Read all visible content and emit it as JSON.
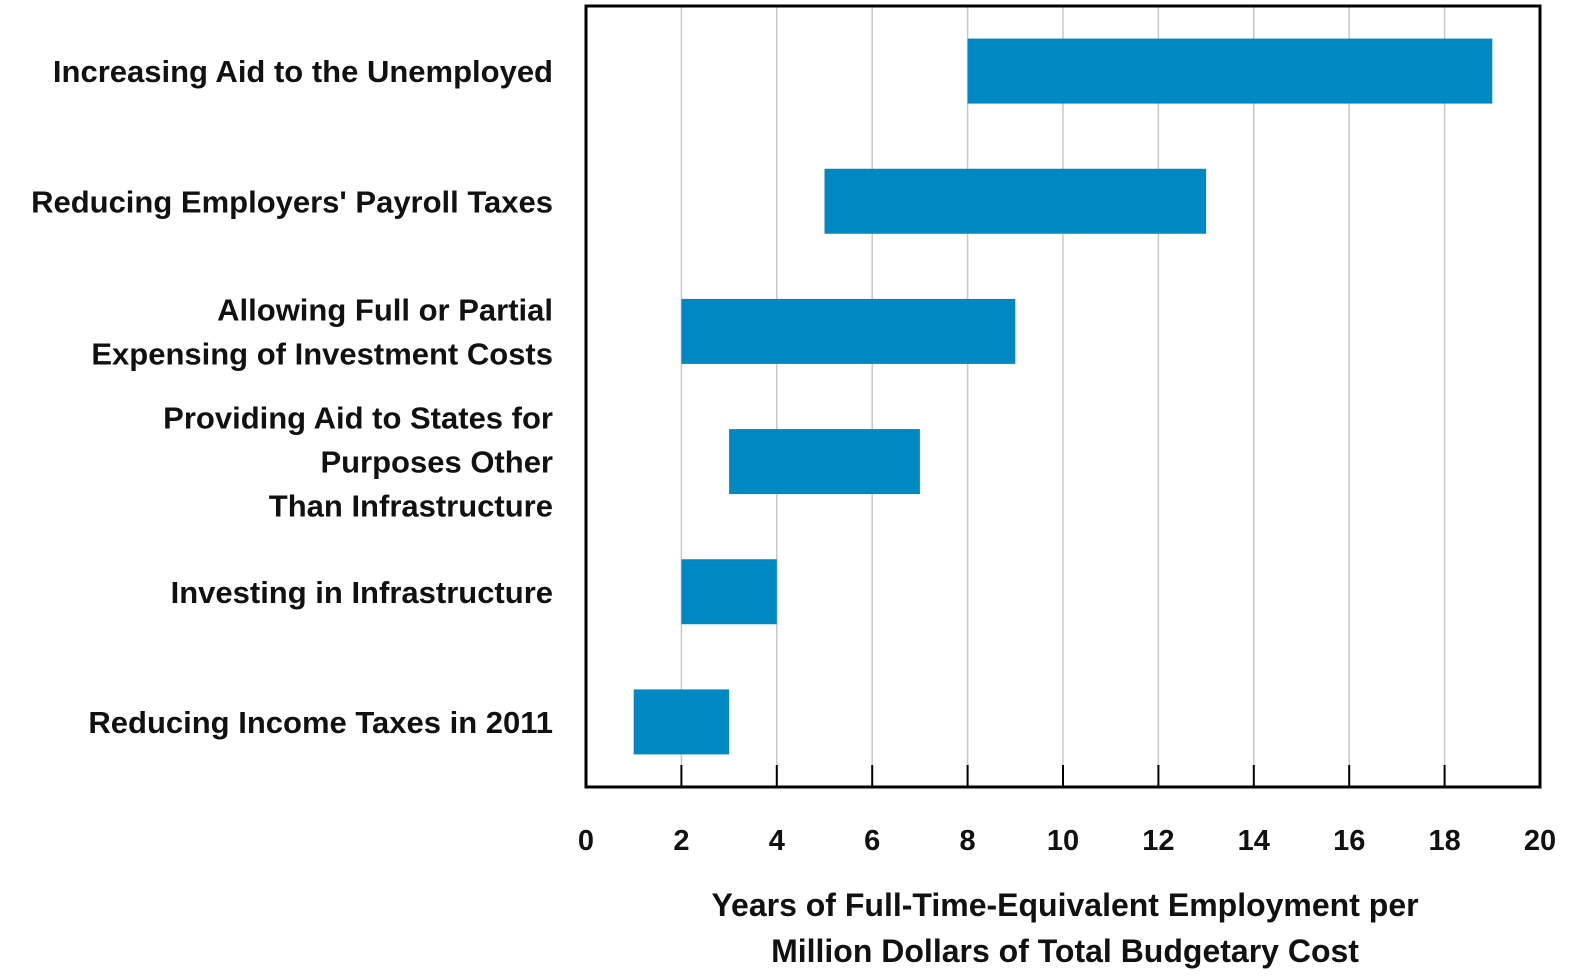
{
  "chart_data": {
    "type": "bar",
    "orientation": "horizontal",
    "subtype": "floating-range",
    "categories": [
      [
        "Increasing Aid to the Unemployed"
      ],
      [
        "Reducing Employers' Payroll Taxes"
      ],
      [
        "Allowing Full or Partial",
        "Expensing of Investment Costs"
      ],
      [
        "Providing Aid to States for",
        "Purposes Other",
        "Than Infrastructure"
      ],
      [
        "Investing in Infrastructure"
      ],
      [
        "Reducing Income Taxes in 2011"
      ]
    ],
    "ranges": [
      [
        8,
        19
      ],
      [
        5,
        13
      ],
      [
        2,
        9
      ],
      [
        3,
        7
      ],
      [
        2,
        4
      ],
      [
        1,
        3
      ]
    ],
    "xlim": [
      0,
      20
    ],
    "xticks": [
      "0",
      "2",
      "4",
      "6",
      "8",
      "10",
      "12",
      "14",
      "16",
      "18",
      "20"
    ],
    "xlabel": [
      "Years of Full-Time-Equivalent Employment per",
      "Million Dollars of Total Budgetary Cost"
    ],
    "ylabel": "",
    "title": "",
    "grid": "vertical",
    "bar_color": "#0088C2",
    "grid_color": "#C8C8C8",
    "axis_color": "#000000"
  }
}
